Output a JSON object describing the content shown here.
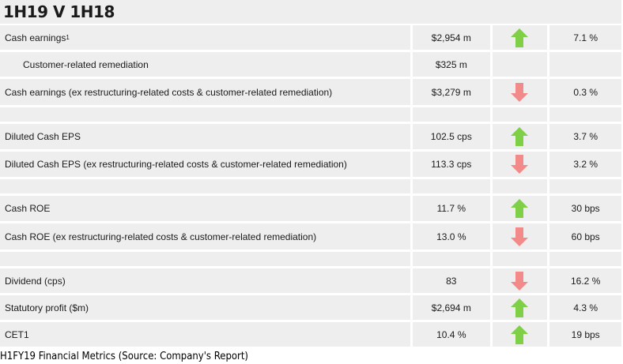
{
  "title": "1H19 V 1H18",
  "caption": "H1FY19 Financial Metrics (Source: Company's Report)",
  "colors": {
    "up": "#7fd047",
    "down": "#f38a8a",
    "row_bg": "#eeeeee"
  },
  "rows": [
    {
      "label": "Cash earnings",
      "sup": "1",
      "value": "$2,954 m",
      "arrow": "up",
      "change": "7.1 %",
      "h": 31
    },
    {
      "label": "Customer-related remediation",
      "indent": true,
      "value": "$325 m",
      "arrow": "",
      "change": "",
      "h": 31
    },
    {
      "label": "Cash earnings (ex restructuring-related costs & customer-related remediation)",
      "value": "$3,279 m",
      "arrow": "down",
      "change": "0.3 %",
      "h": 33
    },
    {
      "spacer": true,
      "h": 18
    },
    {
      "label": "Diluted Cash EPS",
      "value": "102.5 cps",
      "arrow": "up",
      "change": "3.7 %",
      "h": 32
    },
    {
      "label": "Diluted Cash EPS (ex restructuring-related costs & customer-related remediation)",
      "value": "113.3 cps",
      "arrow": "down",
      "change": "3.2 %",
      "h": 32
    },
    {
      "spacer": true,
      "h": 18
    },
    {
      "label": "Cash ROE",
      "value": "11.7 %",
      "arrow": "up",
      "change": "30 bps",
      "h": 32
    },
    {
      "label": "Cash ROE (ex restructuring-related costs & customer-related remediation)",
      "value": "13.0 %",
      "arrow": "down",
      "change": "60 bps",
      "h": 33
    },
    {
      "spacer": true,
      "h": 18
    },
    {
      "label": "Dividend (cps)",
      "value": "83",
      "arrow": "down",
      "change": "16.2 %",
      "h": 31
    },
    {
      "label": "Statutory profit ($m)",
      "value": "$2,694 m",
      "arrow": "up",
      "change": "4.3 %",
      "h": 31
    },
    {
      "label": "CET1",
      "value": "10.4 %",
      "arrow": "up",
      "change": "19 bps",
      "h": 31
    }
  ]
}
